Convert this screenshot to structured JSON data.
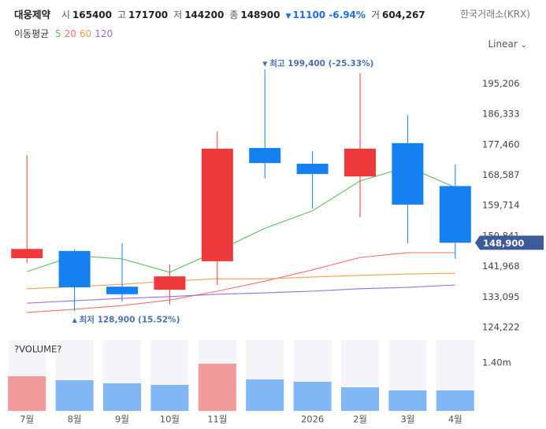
{
  "header": {
    "name": "대웅제약",
    "items": [
      {
        "label": "시",
        "value": "165400"
      },
      {
        "label": "고",
        "value": "171700"
      },
      {
        "label": "저",
        "value": "144200"
      },
      {
        "label": "종",
        "value": "148900"
      }
    ],
    "change": "11100 -6.94%",
    "volume_label": "거",
    "volume_value": "604,267",
    "exchange": "한국거래소(KRX)"
  },
  "scale_label": "Linear",
  "chart_data": {
    "type": "candlestick",
    "categories": [
      "7월",
      "8월",
      "9월",
      "10월",
      "11월",
      null,
      "2026",
      "2월",
      "3월",
      "4월"
    ],
    "open": [
      144400,
      146500,
      136100,
      135200,
      143500,
      176500,
      171900,
      168200,
      177900,
      165400
    ],
    "high": [
      174400,
      147000,
      148800,
      142600,
      181300,
      199400,
      175600,
      198300,
      186100,
      171700
    ],
    "low": [
      143000,
      128900,
      131800,
      130900,
      136600,
      167600,
      158800,
      156300,
      148800,
      144200
    ],
    "close": [
      147100,
      135900,
      133900,
      139100,
      176300,
      172100,
      168900,
      176300,
      160000,
      148900
    ],
    "up_color": "#ef3a3d",
    "down_color": "#1580f0",
    "ylim": [
      122160,
      204690
    ],
    "yticks": [
      {
        "value": 124222,
        "label": "124,222"
      },
      {
        "value": 133095,
        "label": "133,095"
      },
      {
        "value": 141968,
        "label": "141,968"
      },
      {
        "value": 150841,
        "label": "150,841"
      },
      {
        "value": 159714,
        "label": "159,714"
      },
      {
        "value": 168587,
        "label": "168,587"
      },
      {
        "value": 177460,
        "label": "177,460"
      },
      {
        "value": 186333,
        "label": "186,333"
      },
      {
        "value": 195206,
        "label": "195,206"
      }
    ],
    "ma_title": "이동평균",
    "series": [
      {
        "name": "5",
        "color": "#5cbf5c",
        "values": [
          140500,
          145100,
          144200,
          140300,
          146500,
          153100,
          158200,
          166900,
          171000,
          165000
        ]
      },
      {
        "name": "20",
        "color": "#f07070",
        "values": [
          128600,
          129500,
          130600,
          132200,
          134800,
          137700,
          141000,
          144600,
          146000,
          146000
        ]
      },
      {
        "name": "60",
        "color": "#f0a050",
        "values": [
          135500,
          136100,
          136800,
          137700,
          138400,
          138400,
          138900,
          139400,
          139800,
          140000
        ]
      },
      {
        "name": "120",
        "color": "#9b6be0",
        "values": [
          131300,
          132000,
          132700,
          133200,
          133900,
          134300,
          134800,
          135500,
          135900,
          136600
        ]
      }
    ],
    "high_annotation": "최고 199,400 (-25.33%)",
    "low_annotation": "최저 128,900 (15.52%)",
    "last_price_label": "148,900",
    "volume": {
      "type": "bar",
      "title": "?VOLUME?",
      "values": [
        1010000,
        895000,
        803000,
        757000,
        1377000,
        918000,
        849000,
        689000,
        597000,
        597000
      ],
      "colors": [
        "#f09a9c",
        "#82b7f5",
        "#82b7f5",
        "#82b7f5",
        "#f09a9c",
        "#82b7f5",
        "#82b7f5",
        "#82b7f5",
        "#82b7f5",
        "#82b7f5"
      ],
      "ylim": [
        0,
        2066000
      ],
      "yticks": [
        {
          "value": 1400000,
          "label": "1.40m"
        }
      ]
    }
  }
}
